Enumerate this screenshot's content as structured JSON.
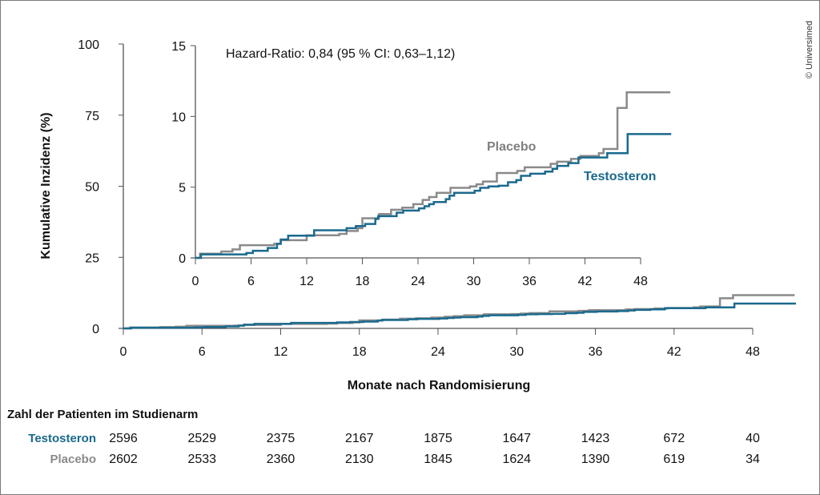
{
  "copyright": "© Universimed",
  "colors": {
    "testosteron": "#1a6a8e",
    "placebo": "#8a8a8a"
  },
  "chart_data": [
    {
      "type": "line",
      "step": true,
      "ylabel": "Kumulative Inzidenz (%)",
      "xlabel": "Monate nach Randomisierung",
      "xlim": [
        0,
        51
      ],
      "ylim": [
        0,
        100
      ],
      "xticks": [
        "0",
        "6",
        "12",
        "18",
        "24",
        "30",
        "36",
        "42",
        "48"
      ],
      "yticks": [
        "0",
        "25",
        "50",
        "75",
        "100"
      ],
      "grid": false
    },
    {
      "type": "line",
      "step": true,
      "inset": true,
      "annotation": "Hazard-Ratio: 0,84 (95 % CI: 0,63–1,12)",
      "xlim": [
        0,
        51
      ],
      "ylim": [
        0,
        15
      ],
      "xticks": [
        "0",
        "6",
        "12",
        "18",
        "24",
        "30",
        "36",
        "42",
        "48"
      ],
      "yticks": [
        "0",
        "5",
        "10",
        "15"
      ],
      "grid": false,
      "series": [
        {
          "name": "Placebo",
          "color": "#8a8a8a",
          "points": [
            [
              0,
              0
            ],
            [
              0.5,
              0.3
            ],
            [
              2.8,
              0.45
            ],
            [
              4,
              0.6
            ],
            [
              4.8,
              0.9
            ],
            [
              8.5,
              1.0
            ],
            [
              9.2,
              1.25
            ],
            [
              12,
              1.6
            ],
            [
              15.5,
              1.7
            ],
            [
              16.3,
              1.9
            ],
            [
              17.5,
              2.1
            ],
            [
              18,
              2.8
            ],
            [
              19.8,
              3.1
            ],
            [
              21.1,
              3.4
            ],
            [
              22.3,
              3.55
            ],
            [
              23.5,
              3.8
            ],
            [
              24.5,
              4.1
            ],
            [
              25.2,
              4.3
            ],
            [
              26,
              4.6
            ],
            [
              27.5,
              4.95
            ],
            [
              29.6,
              5.05
            ],
            [
              30.3,
              5.2
            ],
            [
              31,
              5.4
            ],
            [
              32.5,
              6.0
            ],
            [
              34.7,
              6.15
            ],
            [
              35.5,
              6.4
            ],
            [
              38.3,
              6.65
            ],
            [
              39,
              6.8
            ],
            [
              40.5,
              7.0
            ],
            [
              41.5,
              7.2
            ],
            [
              43.5,
              7.4
            ],
            [
              44,
              7.7
            ],
            [
              45.5,
              10.6
            ],
            [
              46.5,
              11.7
            ],
            [
              51.2,
              11.7
            ]
          ]
        },
        {
          "name": "Testosteron",
          "color": "#1a6a8e",
          "points": [
            [
              0,
              0
            ],
            [
              0.6,
              0.25
            ],
            [
              5.5,
              0.35
            ],
            [
              6.2,
              0.5
            ],
            [
              7.8,
              0.7
            ],
            [
              8.8,
              1.0
            ],
            [
              9.2,
              1.3
            ],
            [
              10,
              1.57
            ],
            [
              12.8,
              1.95
            ],
            [
              16.3,
              2.1
            ],
            [
              17.3,
              2.25
            ],
            [
              18.3,
              2.4
            ],
            [
              19.4,
              2.75
            ],
            [
              19.7,
              2.95
            ],
            [
              21.7,
              3.2
            ],
            [
              22.4,
              3.35
            ],
            [
              24.1,
              3.5
            ],
            [
              24.7,
              3.65
            ],
            [
              25.2,
              3.8
            ],
            [
              25.7,
              3.95
            ],
            [
              27,
              4.15
            ],
            [
              27.4,
              4.4
            ],
            [
              27.9,
              4.6
            ],
            [
              30.1,
              4.75
            ],
            [
              30.7,
              4.95
            ],
            [
              31.6,
              5.05
            ],
            [
              32.7,
              5.1
            ],
            [
              33.7,
              5.35
            ],
            [
              34.6,
              5.5
            ],
            [
              35.1,
              5.8
            ],
            [
              36.1,
              5.95
            ],
            [
              37.7,
              6.1
            ],
            [
              38.5,
              6.3
            ],
            [
              39,
              6.5
            ],
            [
              40.2,
              6.7
            ],
            [
              41.3,
              7.1
            ],
            [
              44.4,
              7.4
            ],
            [
              46.6,
              8.75
            ],
            [
              51.3,
              8.75
            ]
          ]
        }
      ]
    }
  ],
  "risk_table": {
    "title": "Zahl der Patienten im Studienarm",
    "rows": [
      {
        "label": "Testosteron",
        "values": [
          "2596",
          "2529",
          "2375",
          "2167",
          "1875",
          "1647",
          "1423",
          "672",
          "40"
        ]
      },
      {
        "label": "Placebo",
        "values": [
          "2602",
          "2533",
          "2360",
          "2130",
          "1845",
          "1624",
          "1390",
          "619",
          "34"
        ]
      }
    ]
  }
}
